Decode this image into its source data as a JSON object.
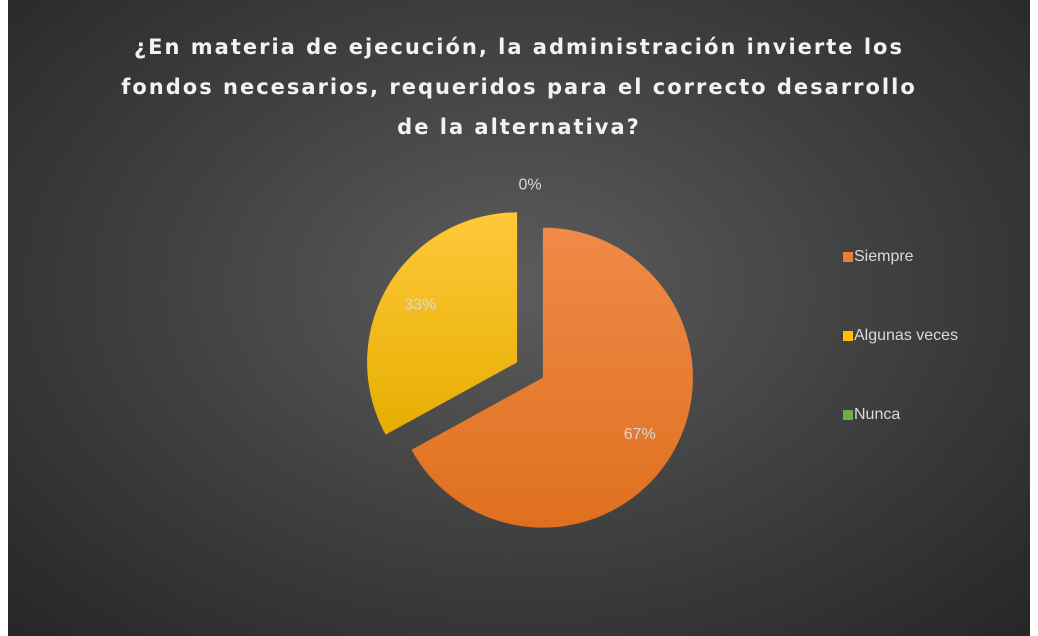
{
  "chart_data": {
    "type": "pie",
    "title": "¿En materia de ejecución, la administración invierte los fondos necesarios, requeridos para el correcto desarrollo de la alternativa?",
    "categories": [
      "Siempre",
      "Algunas veces",
      "Nunca"
    ],
    "values": [
      67,
      33,
      0
    ],
    "value_labels": [
      "67%",
      "33%",
      "0%"
    ],
    "colors": [
      "#ED7D31",
      "#FFC000",
      "#70AD47"
    ],
    "legend": "right"
  }
}
